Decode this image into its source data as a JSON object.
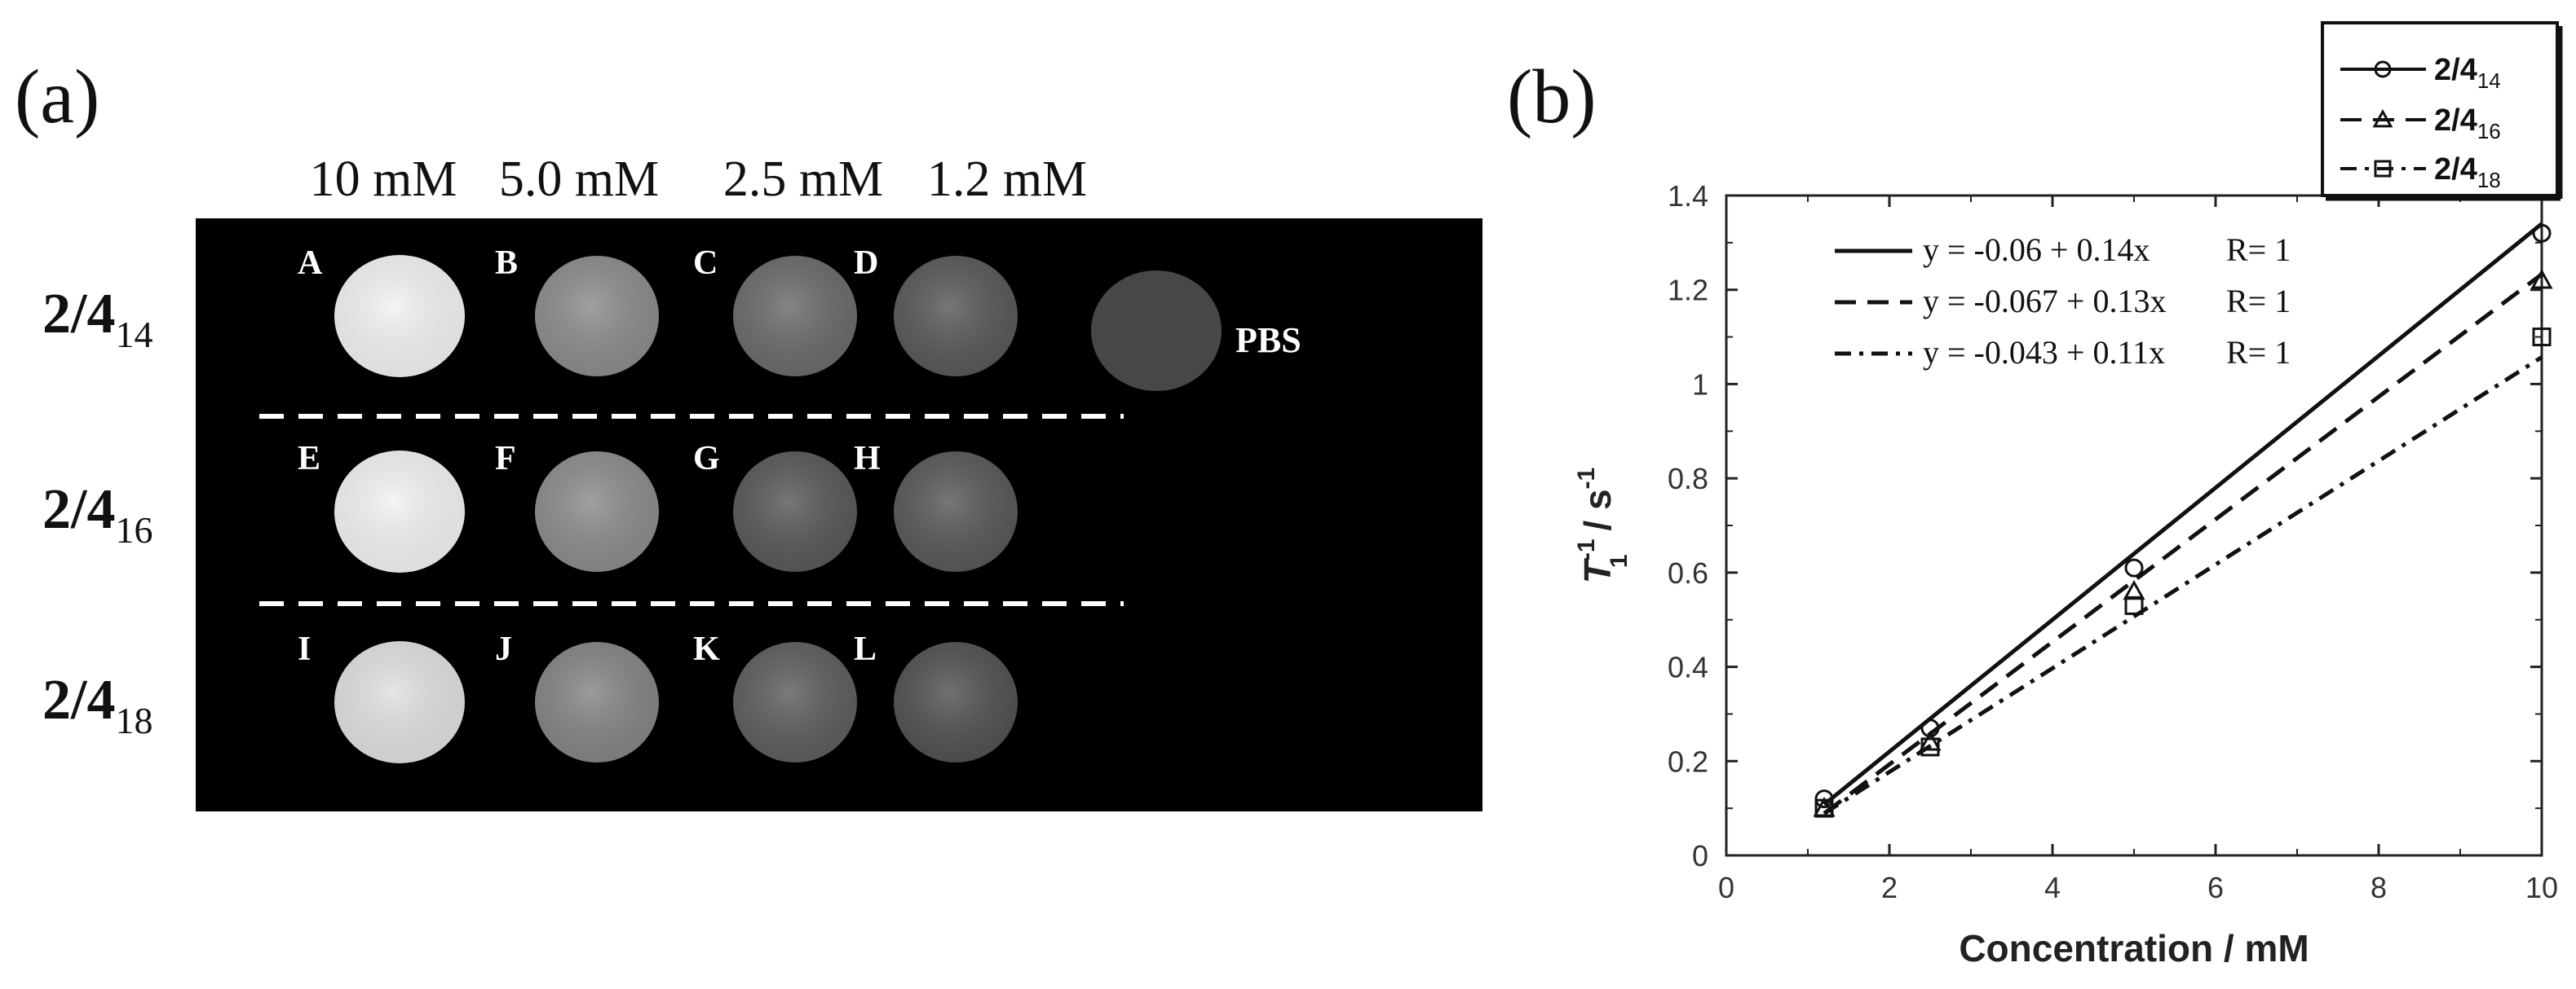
{
  "panel_a": {
    "label": "(a)",
    "concentrations": [
      "10 mM",
      "5.0 mM",
      "2.5 mM",
      "1.2 mM"
    ],
    "rows": [
      {
        "label_main": "2/4",
        "label_sub": "14",
        "wells": [
          {
            "letter": "A",
            "intensity": 0.95
          },
          {
            "letter": "B",
            "intensity": 0.55
          },
          {
            "letter": "C",
            "intensity": 0.42
          },
          {
            "letter": "D",
            "intensity": 0.35
          }
        ]
      },
      {
        "label_main": "2/4",
        "label_sub": "16",
        "wells": [
          {
            "letter": "E",
            "intensity": 0.95
          },
          {
            "letter": "F",
            "intensity": 0.55
          },
          {
            "letter": "G",
            "intensity": 0.35
          },
          {
            "letter": "H",
            "intensity": 0.35
          }
        ]
      },
      {
        "label_main": "2/4",
        "label_sub": "18",
        "wells": [
          {
            "letter": "I",
            "intensity": 0.88
          },
          {
            "letter": "J",
            "intensity": 0.52
          },
          {
            "letter": "K",
            "intensity": 0.37
          },
          {
            "letter": "L",
            "intensity": 0.32
          }
        ]
      }
    ],
    "control": {
      "label": "PBS",
      "intensity": 0.28
    }
  },
  "panel_b": {
    "label": "(b)"
  },
  "chart_data": {
    "type": "scatter",
    "xlabel": "Concentration / mM",
    "ylabel_main": "T",
    "ylabel_sub": "1",
    "ylabel_sup": "-1",
    "ylabel_unit": " / s",
    "ylabel_unit_sup": "-1",
    "xlim": [
      0,
      10
    ],
    "ylim": [
      0,
      1.4
    ],
    "xticks": [
      "0",
      "2",
      "4",
      "6",
      "8",
      "10"
    ],
    "yticks": [
      "0",
      "0.2",
      "0.4",
      "0.6",
      "0.8",
      "1",
      "1.2",
      "1.4"
    ],
    "grid": false,
    "legend_position": "top-right",
    "series": [
      {
        "name_main": "2/4",
        "name_sub": "14",
        "marker": "circle",
        "dash": "solid",
        "x": [
          1.2,
          2.5,
          5.0,
          10
        ],
        "y": [
          0.12,
          0.27,
          0.61,
          1.32
        ],
        "fit": {
          "intercept": -0.06,
          "slope": 0.14
        },
        "equation": "y = -0.06 + 0.14x",
        "r": "R= 1"
      },
      {
        "name_main": "2/4",
        "name_sub": "16",
        "marker": "triangle",
        "dash": "dash",
        "x": [
          1.2,
          2.5,
          5.0,
          10
        ],
        "y": [
          0.1,
          0.24,
          0.56,
          1.22
        ],
        "fit": {
          "intercept": -0.067,
          "slope": 0.13
        },
        "equation": "y = -0.067 + 0.13x",
        "r": "R= 1"
      },
      {
        "name_main": "2/4",
        "name_sub": "18",
        "marker": "square",
        "dash": "dashdot",
        "x": [
          1.2,
          2.5,
          5.0,
          10
        ],
        "y": [
          0.1,
          0.23,
          0.53,
          1.1
        ],
        "fit": {
          "intercept": -0.043,
          "slope": 0.11
        },
        "equation": "y = -0.043 + 0.11x",
        "r": "R= 1"
      }
    ]
  }
}
